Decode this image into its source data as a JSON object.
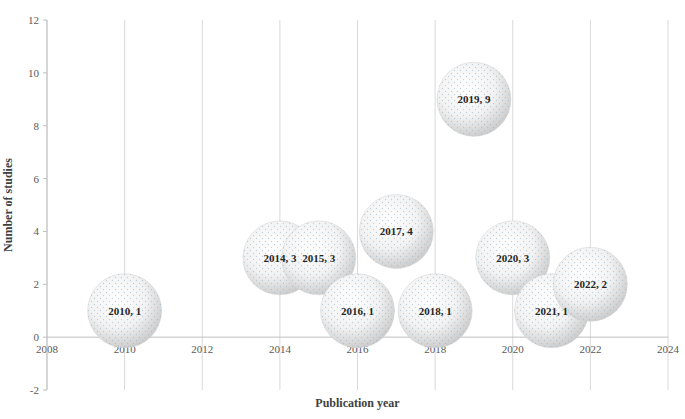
{
  "chart_data": {
    "type": "bubble",
    "x_label": "Publication year",
    "y_label": "Number of studies",
    "x": [
      2010,
      2014,
      2015,
      2016,
      2017,
      2018,
      2019,
      2020,
      2021,
      2022
    ],
    "values": [
      1,
      3,
      3,
      1,
      4,
      1,
      9,
      3,
      1,
      2
    ],
    "value_labels": [
      "2010, 1",
      "2014, 3",
      "2015, 3",
      "2016, 1",
      "2017, 4",
      "2018, 1",
      "2019, 9",
      "2020, 3",
      "2021, 1",
      "2022, 2"
    ],
    "data_labels": true,
    "marker": "circle",
    "color": "#c8c8c8",
    "xlim": [
      2008,
      2024
    ],
    "ylim": [
      -2,
      12
    ],
    "xticks": [
      2008,
      2010,
      2012,
      2014,
      2016,
      2018,
      2020,
      2022,
      2024
    ],
    "yticks": [
      -2,
      0,
      2,
      4,
      6,
      8,
      10,
      12
    ],
    "grid": true
  }
}
